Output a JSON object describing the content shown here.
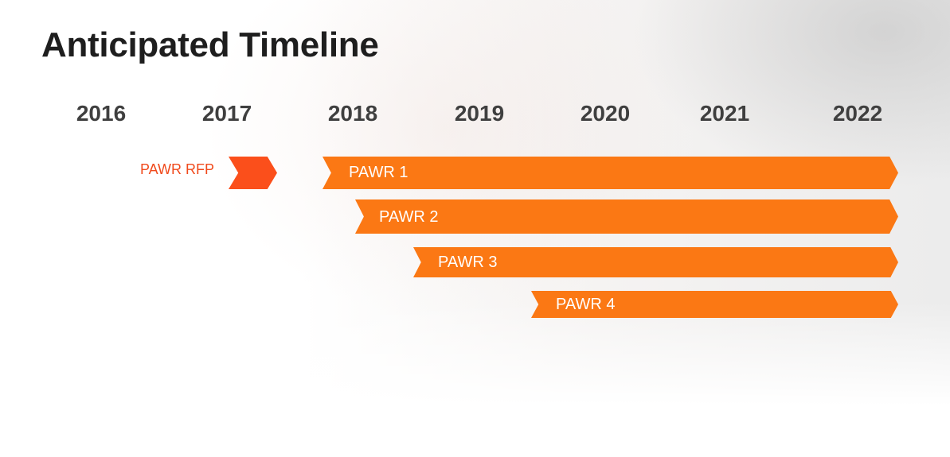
{
  "title": "Anticipated Timeline",
  "years": [
    "2016",
    "2017",
    "2018",
    "2019",
    "2020",
    "2021",
    "2022"
  ],
  "rfp": {
    "label": "PAWR RFP",
    "color": "#fb4f1b",
    "label_color": "#f04a1c"
  },
  "bars": [
    {
      "label": "PAWR 1",
      "start": "early 2018",
      "end": "2022"
    },
    {
      "label": "PAWR 2",
      "start": "2018",
      "end": "2022"
    },
    {
      "label": "PAWR 3",
      "start": "mid 2018",
      "end": "2022"
    },
    {
      "label": "PAWR 4",
      "start": "mid 2019",
      "end": "2022"
    }
  ],
  "colors": {
    "bar": "#fb7814",
    "title": "#1e1e1e",
    "year": "#3f3f3f",
    "bar_text": "#ffffff"
  }
}
